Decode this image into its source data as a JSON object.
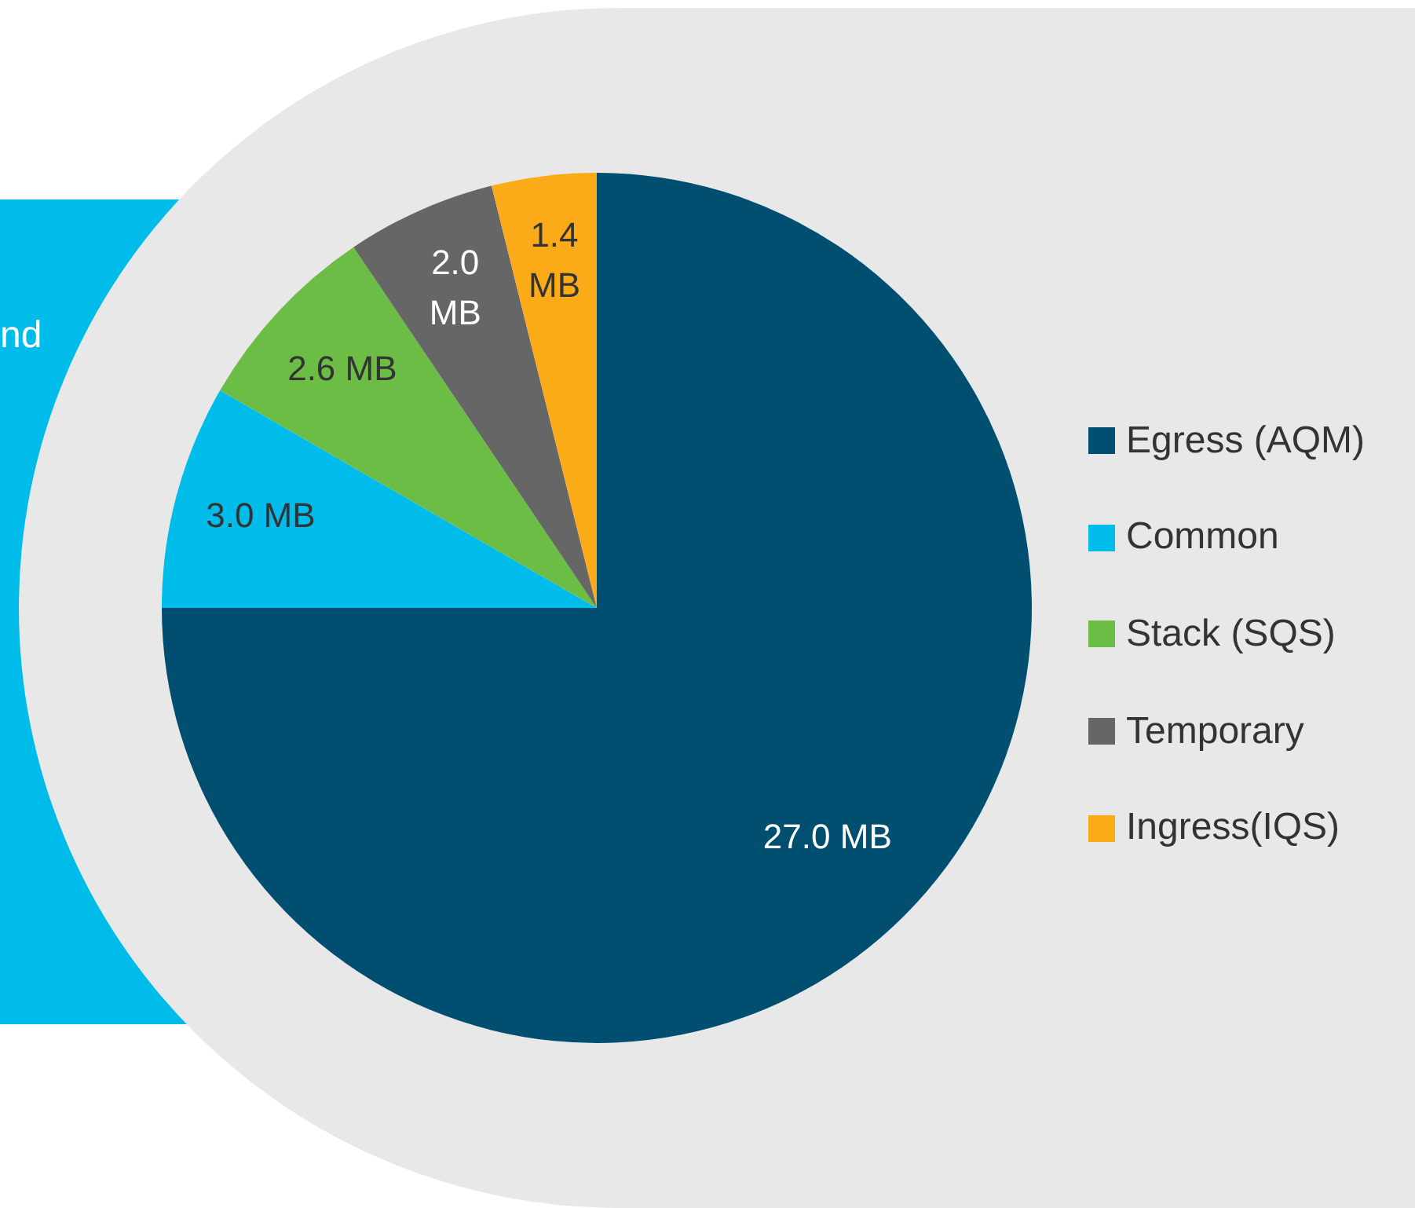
{
  "chart_data": {
    "type": "pie",
    "categories": [
      "Egress (AQM)",
      "Common",
      "Stack (SQS)",
      "Temporary",
      "Ingress(IQS)"
    ],
    "values": [
      27.0,
      3.0,
      2.6,
      2.0,
      1.4
    ],
    "value_labels": [
      "27.0 MB",
      "3.0 MB",
      "2.6 MB",
      "2.0 MB",
      "1.4 MB"
    ],
    "colors": [
      "#004f71",
      "#00bceb",
      "#6cbd45",
      "#666666",
      "#fbab18"
    ],
    "legend": "right",
    "annotations": [
      "nd"
    ]
  }
}
